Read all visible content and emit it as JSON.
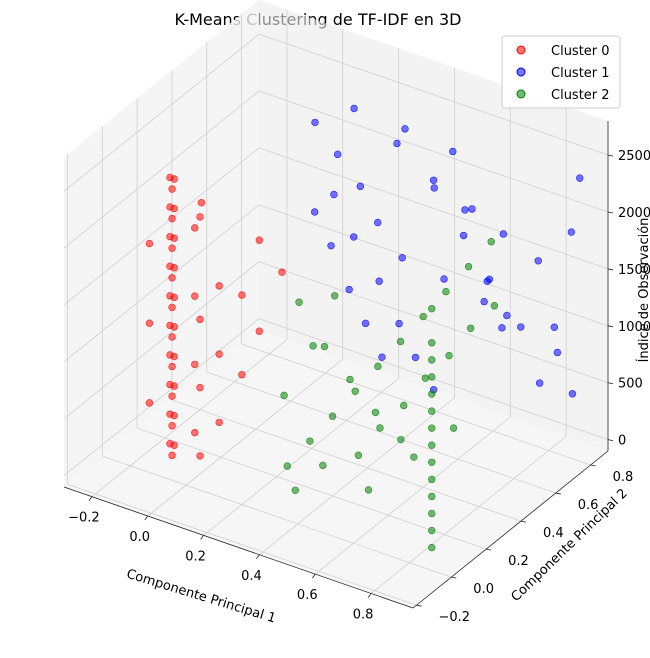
{
  "chart_data": {
    "type": "scatter",
    "projection": "3d",
    "title": "K-Means Clustering de TF-IDF en 3D",
    "xlabel": "Componente Principal 1",
    "ylabel": "Componente Principal 2",
    "zlabel": "Índice de Observación",
    "xlim": [
      -0.3,
      0.95
    ],
    "ylim": [
      -0.22,
      0.9
    ],
    "zlim": [
      -100,
      2800
    ],
    "xticks": [
      "−0.2",
      "0.0",
      "0.2",
      "0.4",
      "0.6",
      "0.8"
    ],
    "yticks": [
      "−0.2",
      "0.0",
      "0.2",
      "0.4",
      "0.6",
      "0.8"
    ],
    "zticks": [
      "0",
      "500",
      "1000",
      "1500",
      "2000",
      "2500"
    ],
    "grid": true,
    "legend_position": "top-right",
    "series": [
      {
        "name": "Cluster 0",
        "color": "#ff0000",
        "points": [
          [
            -0.05,
            0.0,
            120
          ],
          [
            -0.05,
            0.0,
            380
          ],
          [
            -0.05,
            0.0,
            640
          ],
          [
            -0.05,
            0.0,
            900
          ],
          [
            -0.05,
            0.0,
            1160
          ],
          [
            -0.05,
            0.0,
            1420
          ],
          [
            -0.05,
            0.0,
            1680
          ],
          [
            -0.05,
            0.0,
            1940
          ],
          [
            -0.05,
            0.0,
            2200
          ],
          [
            -0.05,
            0.0,
            2460
          ],
          [
            -0.03,
            -0.02,
            250
          ],
          [
            -0.03,
            -0.02,
            510
          ],
          [
            -0.03,
            -0.02,
            770
          ],
          [
            -0.03,
            -0.02,
            1030
          ],
          [
            -0.03,
            -0.02,
            1290
          ],
          [
            -0.03,
            -0.02,
            1550
          ],
          [
            -0.03,
            -0.02,
            1810
          ],
          [
            -0.03,
            -0.02,
            2070
          ],
          [
            -0.03,
            -0.02,
            2330
          ],
          [
            -0.03,
            -0.02,
            2590
          ],
          [
            -0.07,
            0.02,
            180
          ],
          [
            -0.07,
            0.02,
            440
          ],
          [
            -0.07,
            0.02,
            700
          ],
          [
            -0.07,
            0.02,
            960
          ],
          [
            -0.07,
            0.02,
            1220
          ],
          [
            -0.07,
            0.02,
            1480
          ],
          [
            -0.07,
            0.02,
            1740
          ],
          [
            -0.07,
            0.02,
            2000
          ],
          [
            -0.07,
            0.02,
            2260
          ],
          [
            -0.07,
            0.02,
            2520
          ],
          [
            0.0,
            0.05,
            300
          ],
          [
            0.0,
            0.05,
            900
          ],
          [
            0.0,
            0.05,
            1500
          ],
          [
            0.0,
            0.05,
            2100
          ],
          [
            -0.1,
            -0.05,
            600
          ],
          [
            -0.1,
            -0.05,
            1300
          ],
          [
            -0.1,
            -0.05,
            2000
          ],
          [
            0.05,
            0.0,
            200
          ],
          [
            0.05,
            0.0,
            800
          ],
          [
            0.05,
            0.0,
            1400
          ],
          [
            0.05,
            0.0,
            2300
          ],
          [
            0.1,
            0.03,
            500
          ],
          [
            0.1,
            0.03,
            1100
          ],
          [
            0.1,
            0.03,
            1700
          ],
          [
            0.15,
            0.08,
            900
          ],
          [
            0.15,
            0.08,
            1600
          ],
          [
            0.2,
            0.1,
            1300
          ],
          [
            0.2,
            0.1,
            2100
          ],
          [
            0.25,
            0.15,
            1800
          ],
          [
            0.08,
            -0.04,
            2500
          ]
        ]
      },
      {
        "name": "Cluster 1",
        "color": "#0000ff",
        "points": [
          [
            0.15,
            0.5,
            2600
          ],
          [
            0.2,
            0.55,
            2300
          ],
          [
            0.25,
            0.6,
            2000
          ],
          [
            0.3,
            0.62,
            1700
          ],
          [
            0.35,
            0.65,
            2400
          ],
          [
            0.4,
            0.6,
            1500
          ],
          [
            0.45,
            0.7,
            2100
          ],
          [
            0.5,
            0.68,
            1300
          ],
          [
            0.55,
            0.72,
            1900
          ],
          [
            0.6,
            0.75,
            1100
          ],
          [
            0.65,
            0.78,
            1700
          ],
          [
            0.7,
            0.8,
            900
          ],
          [
            0.75,
            0.82,
            1500
          ],
          [
            0.8,
            0.85,
            700
          ],
          [
            0.85,
            0.85,
            1800
          ],
          [
            0.88,
            0.85,
            2300
          ],
          [
            0.18,
            0.45,
            1900
          ],
          [
            0.22,
            0.48,
            1600
          ],
          [
            0.26,
            0.52,
            1200
          ],
          [
            0.3,
            0.55,
            900
          ],
          [
            0.34,
            0.58,
            600
          ],
          [
            0.28,
            0.4,
            2200
          ],
          [
            0.32,
            0.45,
            1800
          ],
          [
            0.38,
            0.5,
            1400
          ],
          [
            0.42,
            0.55,
            1000
          ],
          [
            0.46,
            0.58,
            700
          ],
          [
            0.5,
            0.62,
            400
          ],
          [
            0.55,
            0.65,
            2500
          ],
          [
            0.6,
            0.68,
            2000
          ],
          [
            0.65,
            0.7,
            1400
          ],
          [
            0.7,
            0.72,
            1100
          ],
          [
            0.78,
            0.78,
            500
          ],
          [
            0.82,
            0.8,
            1000
          ],
          [
            0.86,
            0.84,
            400
          ],
          [
            0.24,
            0.58,
            2700
          ],
          [
            0.36,
            0.68,
            2500
          ],
          [
            0.44,
            0.72,
            2000
          ],
          [
            0.52,
            0.76,
            1600
          ],
          [
            0.58,
            0.8,
            1200
          ],
          [
            0.62,
            0.82,
            800
          ]
        ]
      },
      {
        "name": "Cluster 2",
        "color": "#008000",
        "points": [
          [
            0.3,
            0.1,
            200
          ],
          [
            0.35,
            0.15,
            400
          ],
          [
            0.4,
            0.2,
            600
          ],
          [
            0.45,
            0.25,
            800
          ],
          [
            0.5,
            0.3,
            1000
          ],
          [
            0.55,
            0.35,
            1200
          ],
          [
            0.6,
            0.4,
            1400
          ],
          [
            0.65,
            0.45,
            1600
          ],
          [
            0.7,
            0.5,
            1800
          ],
          [
            0.75,
            0.55,
            2000
          ],
          [
            0.32,
            0.05,
            900
          ],
          [
            0.38,
            0.12,
            1300
          ],
          [
            0.42,
            0.18,
            1700
          ],
          [
            0.48,
            0.22,
            300
          ],
          [
            0.52,
            0.28,
            500
          ],
          [
            0.58,
            0.32,
            700
          ],
          [
            0.62,
            0.38,
            900
          ],
          [
            0.68,
            0.42,
            1100
          ],
          [
            0.72,
            0.48,
            1300
          ],
          [
            0.78,
            0.52,
            1500
          ],
          [
            0.28,
            0.2,
            1500
          ],
          [
            0.34,
            0.25,
            1100
          ],
          [
            0.4,
            0.3,
            800
          ],
          [
            0.46,
            0.35,
            500
          ],
          [
            0.52,
            0.4,
            250
          ],
          [
            0.36,
            0.05,
            100
          ],
          [
            0.44,
            0.08,
            350
          ],
          [
            0.56,
            0.15,
            150
          ],
          [
            0.66,
            0.25,
            400
          ],
          [
            0.74,
            0.35,
            600
          ],
          [
            0.88,
            0.0,
            100
          ],
          [
            0.88,
            0.0,
            400
          ],
          [
            0.88,
            0.0,
            700
          ],
          [
            0.88,
            0.0,
            1000
          ],
          [
            0.88,
            0.0,
            1300
          ],
          [
            0.88,
            0.0,
            1600
          ],
          [
            0.88,
            0.0,
            1900
          ],
          [
            0.88,
            0.0,
            2200
          ],
          [
            0.88,
            0.0,
            250
          ],
          [
            0.88,
            0.0,
            550
          ],
          [
            0.88,
            0.0,
            850
          ],
          [
            0.88,
            0.0,
            1150
          ],
          [
            0.88,
            0.0,
            1450
          ],
          [
            0.88,
            0.0,
            1750
          ]
        ]
      }
    ]
  }
}
